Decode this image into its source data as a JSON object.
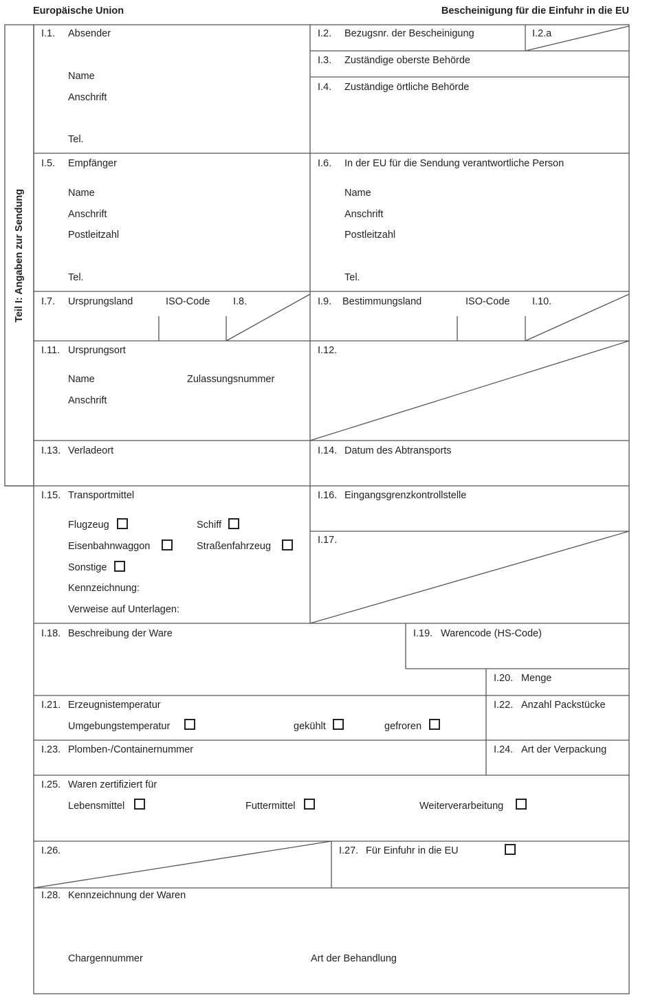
{
  "header": {
    "left": "Europäische Union",
    "right": "Bescheinigung für die Einfuhr in die EU"
  },
  "side_label": "Teil I: Angaben zur Sendung",
  "f": {
    "i1": {
      "num": "I.1.",
      "title": "Absender",
      "name": "Name",
      "address": "Anschrift",
      "tel": "Tel."
    },
    "i2": {
      "num": "I.2.",
      "title": "Bezugsnr. der Bescheinigung",
      "sub": "I.2.a"
    },
    "i3": {
      "num": "I.3.",
      "title": "Zuständige oberste Behörde"
    },
    "i4": {
      "num": "I.4.",
      "title": "Zuständige örtliche Behörde"
    },
    "i5": {
      "num": "I.5.",
      "title": "Empfänger",
      "name": "Name",
      "address": "Anschrift",
      "zip": "Postleitzahl",
      "tel": "Tel."
    },
    "i6": {
      "num": "I.6.",
      "title": "In der EU für die Sendung verantwortliche Person",
      "name": "Name",
      "address": "Anschrift",
      "zip": "Postleitzahl",
      "tel": "Tel."
    },
    "i7": {
      "num": "I.7.",
      "title": "Ursprungsland",
      "iso": "ISO-Code"
    },
    "i8": {
      "num": "I.8."
    },
    "i9": {
      "num": "I.9.",
      "title": "Bestimmungsland",
      "iso": "ISO-Code"
    },
    "i10": {
      "num": "I.10."
    },
    "i11": {
      "num": "I.11.",
      "title": "Ursprungsort",
      "name": "Name",
      "approval": "Zulassungsnummer",
      "address": "Anschrift"
    },
    "i12": {
      "num": "I.12."
    },
    "i13": {
      "num": "I.13.",
      "title": "Verladeort"
    },
    "i14": {
      "num": "I.14.",
      "title": "Datum des Abtransports"
    },
    "i15": {
      "num": "I.15.",
      "title": "Transportmittel",
      "plane": "Flugzeug",
      "ship": "Schiff",
      "rail": "Eisenbahnwaggon",
      "road": "Straßenfahrzeug",
      "other": "Sonstige",
      "ident": "Kennzeichnung:",
      "docs": "Verweise auf Unterlagen:"
    },
    "i16": {
      "num": "I.16.",
      "title": "Eingangsgrenzkontrollstelle"
    },
    "i17": {
      "num": "I.17."
    },
    "i18": {
      "num": "I.18.",
      "title": "Beschreibung der Ware"
    },
    "i19": {
      "num": "I.19.",
      "title": "Warencode (HS-Code)"
    },
    "i20": {
      "num": "I.20.",
      "title": "Menge"
    },
    "i21": {
      "num": "I.21.",
      "title": "Erzeugnistemperatur",
      "ambient": "Umgebungstemperatur",
      "chilled": "gekühlt",
      "frozen": "gefroren"
    },
    "i22": {
      "num": "I.22.",
      "title": "Anzahl Packstücke"
    },
    "i23": {
      "num": "I.23.",
      "title": "Plomben-/Containernummer"
    },
    "i24": {
      "num": "I.24.",
      "title": "Art der Verpackung"
    },
    "i25": {
      "num": "I.25.",
      "title": "Waren zertifiziert für",
      "food": "Lebensmittel",
      "feed": "Futtermittel",
      "processing": "Weiterverarbeitung"
    },
    "i26": {
      "num": "I.26."
    },
    "i27": {
      "num": "I.27.",
      "title": "Für Einfuhr in die EU"
    },
    "i28": {
      "num": "I.28.",
      "title": "Kennzeichnung der Waren",
      "batch": "Chargennummer",
      "treatment": "Art der Behandlung"
    }
  }
}
